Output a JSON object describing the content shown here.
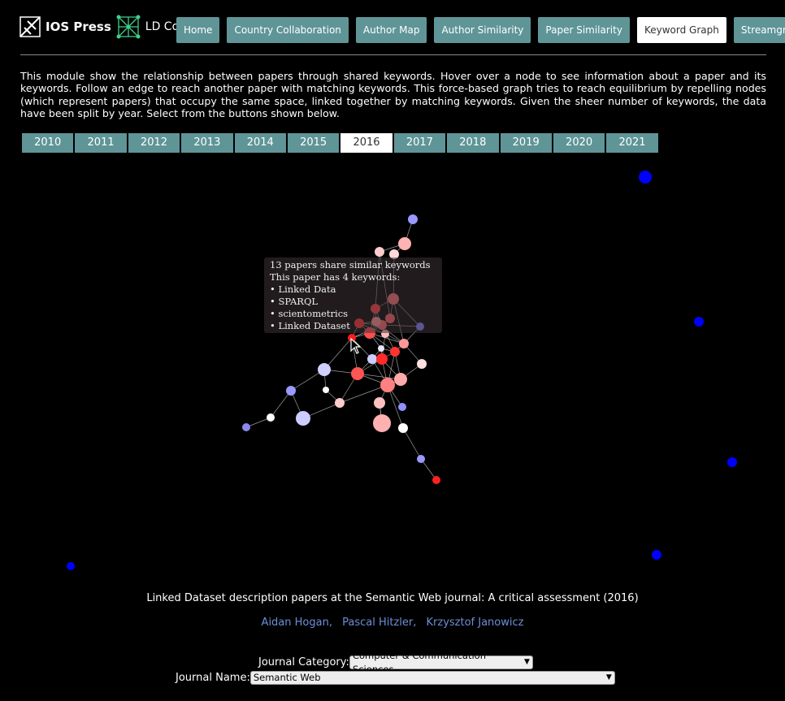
{
  "header": {
    "logo_ios": "IOS Press",
    "logo_ld": "LD Connect",
    "nav": [
      {
        "label": "Home",
        "active": false
      },
      {
        "label": "Country Collaboration",
        "active": false
      },
      {
        "label": "Author Map",
        "active": false
      },
      {
        "label": "Author Similarity",
        "active": false
      },
      {
        "label": "Paper Similarity",
        "active": false
      },
      {
        "label": "Keyword Graph",
        "active": true
      },
      {
        "label": "Streamgraph",
        "active": false
      }
    ]
  },
  "description": "This module show the relationship between papers through shared keywords. Hover over a node to see information about a paper and its keywords. Follow an edge to reach another paper with matching keywords. This force-based graph tries to reach equilibrium by repelling nodes (which represent papers) that occupy the same space, linked together by matching keywords. Given the sheer number of keywords, the data have been split by year. Select from the buttons shown below.",
  "years": {
    "items": [
      "2010",
      "2011",
      "2012",
      "2013",
      "2014",
      "2015",
      "2016",
      "2017",
      "2018",
      "2019",
      "2020",
      "2021"
    ],
    "active": "2016"
  },
  "tooltip": {
    "line1": "13 papers share similar keywords",
    "line2": "This paper has 4 keywords:",
    "keywords": [
      "• Linked Data",
      "• SPARQL",
      "• scientometrics",
      "• Linked Dataset"
    ]
  },
  "paper": {
    "title": "Linked Dataset description papers at the Semantic Web journal: A critical assessment (2016)",
    "authors": [
      "Aidan Hogan,",
      "Pascal Hitzler,",
      "Krzysztof Janowicz"
    ]
  },
  "journal_category": {
    "label": "Journal Category:",
    "value": "Computer & Communication Sciences"
  },
  "journal_name": {
    "label": "Journal Name:",
    "value": "Semantic Web"
  },
  "colors": {
    "nav_bg": "#5f9597",
    "isolated_node": "#0000ff",
    "edge": "#cccccc"
  },
  "graph": {
    "nodes": [
      {
        "id": "a",
        "c": "#ff1a1a"
      },
      {
        "id": "b",
        "c": "#ff4d4d"
      },
      {
        "id": "c",
        "c": "#ff6666"
      },
      {
        "id": "d",
        "c": "#ff3333"
      },
      {
        "id": "e",
        "c": "#ff9999"
      },
      {
        "id": "f",
        "c": "#ffb3b3"
      },
      {
        "id": "g",
        "c": "#ffcccc"
      },
      {
        "id": "h",
        "c": "#ffd9d9"
      },
      {
        "id": "i",
        "c": "#e6e6ff"
      },
      {
        "id": "j",
        "c": "#ccccff"
      },
      {
        "id": "k",
        "c": "#9999ff"
      },
      {
        "id": "l",
        "c": "#8080ff"
      },
      {
        "id": "m",
        "c": "#ffffff"
      },
      {
        "id": "n",
        "c": "#ff2a2a"
      },
      {
        "id": "o",
        "c": "#ff5555"
      },
      {
        "id": "p",
        "c": "#ffaaaa"
      },
      {
        "id": "q",
        "c": "#ff8080"
      },
      {
        "id": "r",
        "c": "#ffc0c0"
      },
      {
        "id": "s",
        "c": "#ff4040"
      },
      {
        "id": "t",
        "c": "#ff7070"
      },
      {
        "id": "u",
        "c": "#ffe0e0"
      },
      {
        "id": "v",
        "c": "#d0d0ff"
      },
      {
        "id": "w",
        "c": "#ffffff"
      },
      {
        "id": "x",
        "c": "#ffcccc"
      },
      {
        "id": "y",
        "c": "#ff3030"
      },
      {
        "id": "z",
        "c": "#9999ff"
      },
      {
        "id": "aa",
        "c": "#ccccff"
      },
      {
        "id": "ab",
        "c": "#8888ee"
      },
      {
        "id": "ac",
        "c": "#ffffff"
      },
      {
        "id": "ad",
        "c": "#ffb0b0"
      },
      {
        "id": "ae",
        "c": "#ff6060"
      },
      {
        "id": "af",
        "c": "#9090ff"
      },
      {
        "id": "ag",
        "c": "#9999ff"
      },
      {
        "id": "ah",
        "c": "#ff2020"
      },
      {
        "id": "ai",
        "c": "#ffbbbb"
      },
      {
        "id": "aj",
        "c": "#ff9090"
      },
      {
        "id": "ak",
        "c": "#0000ff"
      },
      {
        "id": "al",
        "c": "#0000ff"
      },
      {
        "id": "am",
        "c": "#0000ff"
      },
      {
        "id": "an",
        "c": "#0000ff"
      },
      {
        "id": "ao",
        "c": "#0000ff"
      }
    ]
  }
}
